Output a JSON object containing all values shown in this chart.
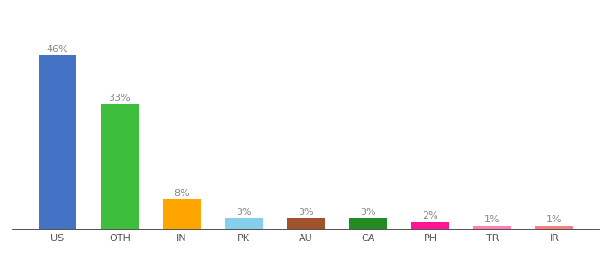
{
  "categories": [
    "US",
    "OTH",
    "IN",
    "PK",
    "AU",
    "CA",
    "PH",
    "TR",
    "IR"
  ],
  "values": [
    46,
    33,
    8,
    3,
    3,
    3,
    2,
    1,
    1
  ],
  "bar_colors": [
    "#4472c4",
    "#3dbf3d",
    "#ffa500",
    "#87ceeb",
    "#a0522d",
    "#228b22",
    "#ff1493",
    "#ff80b0",
    "#fa8080"
  ],
  "title_fontsize": 9,
  "label_fontsize": 8,
  "tick_fontsize": 8,
  "ylim": [
    0,
    52
  ],
  "background_color": "#ffffff",
  "label_color": "#888888"
}
